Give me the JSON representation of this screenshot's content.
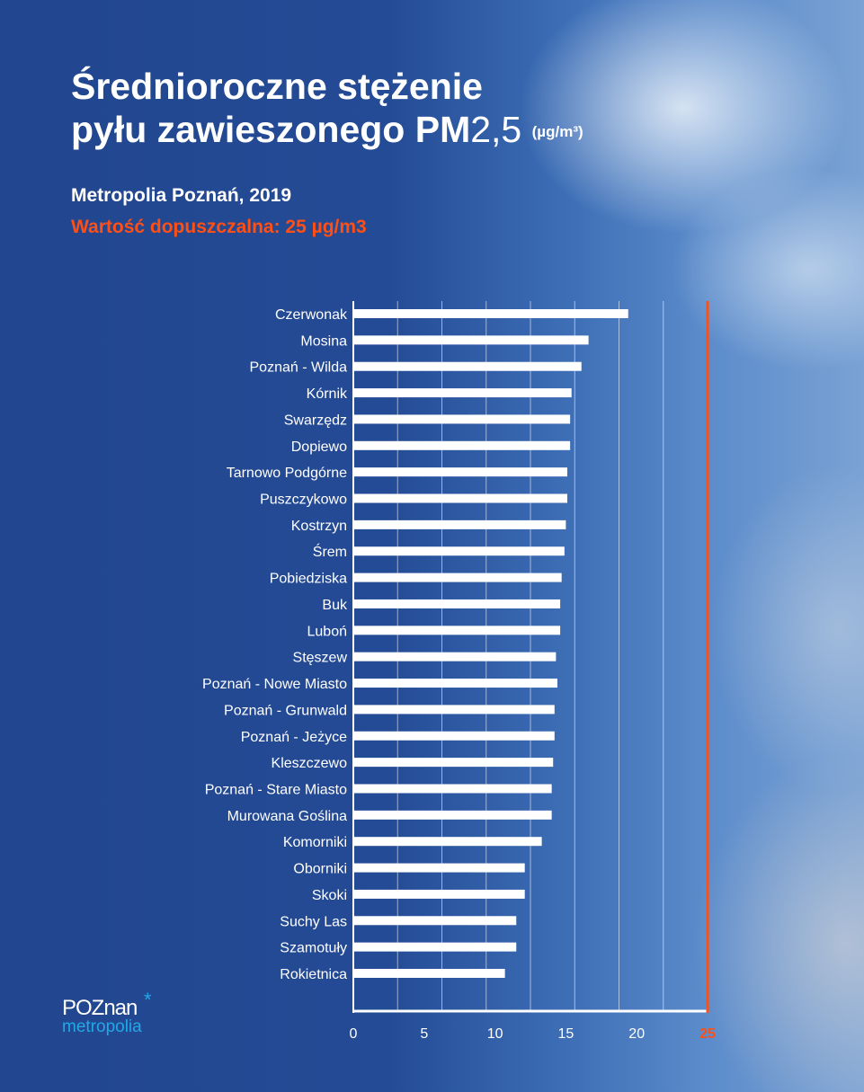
{
  "title": {
    "line1": "Średnioroczne stężenie",
    "line2_bold": "pyłu zawieszonego PM",
    "line2_num": "2,5",
    "unit": "(µg/m³)"
  },
  "subtitle": "Metropolia Poznań, 2019",
  "limit_text": "Wartość dopuszczalna: 25 µg/m3",
  "logo": {
    "top": "POZnan",
    "bottom": "metropolia"
  },
  "colors": {
    "bar": "#ffffff",
    "limit": "#ff4f14",
    "background": "#244b96",
    "logo_accent": "#22a8e6"
  },
  "chart_data": {
    "type": "bar",
    "orientation": "horizontal",
    "categories": [
      "Czerwonak",
      "Mosina",
      "Poznań - Wilda",
      "Kórnik",
      "Swarzędz",
      "Dopiewo",
      "Tarnowo Podgórne",
      "Puszczykowo",
      "Kostrzyn",
      "Śrem",
      "Pobiedziska",
      "Buk",
      "Luboń",
      "Stęszew",
      "Poznań - Nowe Miasto",
      "Poznań - Grunwald",
      "Poznań - Jeżyce",
      "Kleszczewo",
      "Poznań - Stare Miasto",
      "Murowana Goślina",
      "Komorniki",
      "Oborniki",
      "Skoki",
      "Suchy Las",
      "Szamotuły",
      "Rokietnica"
    ],
    "values": [
      19.4,
      16.6,
      16.1,
      15.4,
      15.3,
      15.3,
      15.1,
      15.1,
      15.0,
      14.9,
      14.7,
      14.6,
      14.6,
      14.3,
      14.4,
      14.2,
      14.2,
      14.1,
      14.0,
      14.0,
      13.3,
      12.1,
      12.1,
      11.5,
      11.5,
      10.7
    ],
    "xlim": [
      0,
      25
    ],
    "xticks": [
      "0",
      "5",
      "10",
      "15",
      "20",
      "25"
    ],
    "limit_value": 25,
    "grid": true
  }
}
